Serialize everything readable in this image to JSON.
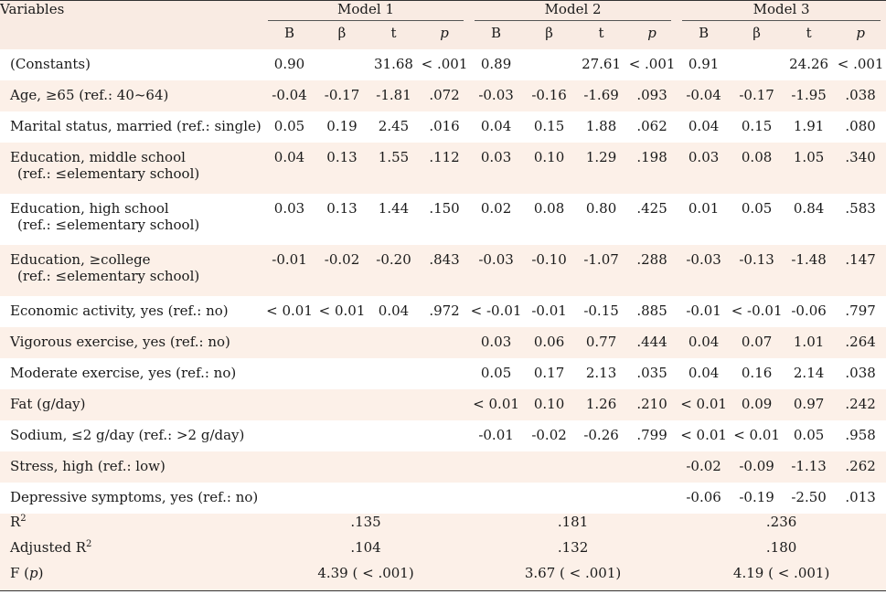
{
  "header": {
    "variables": "Variables",
    "models": [
      "Model 1",
      "Model 2",
      "Model 3"
    ],
    "subcols": [
      "B",
      "β",
      "t",
      "p"
    ]
  },
  "rows": [
    {
      "label1": "(Constants)",
      "label2": "",
      "shade": false,
      "cells": [
        "0.90",
        "",
        "31.68",
        "< .001",
        "0.89",
        "",
        "27.61",
        "< .001",
        "0.91",
        "",
        "24.26",
        "< .001"
      ]
    },
    {
      "label1": "Age, ≥65 (ref.: 40~64)",
      "label2": "",
      "shade": true,
      "cells": [
        "-0.04",
        "-0.17",
        "-1.81",
        ".072",
        "-0.03",
        "-0.16",
        "-1.69",
        ".093",
        "-0.04",
        "-0.17",
        "-1.95",
        ".038"
      ]
    },
    {
      "label1": "Marital status, married (ref.: single)",
      "label2": "",
      "shade": false,
      "cells": [
        "0.05",
        "0.19",
        "2.45",
        ".016",
        "0.04",
        "0.15",
        "1.88",
        ".062",
        "0.04",
        "0.15",
        "1.91",
        ".080"
      ]
    },
    {
      "label1": "Education, middle school",
      "label2": "(ref.: ≤elementary school)",
      "shade": true,
      "cells": [
        "0.04",
        "0.13",
        "1.55",
        ".112",
        "0.03",
        "0.10",
        "1.29",
        ".198",
        "0.03",
        "0.08",
        "1.05",
        ".340"
      ]
    },
    {
      "label1": "Education, high school",
      "label2": "(ref.: ≤elementary school)",
      "shade": false,
      "cells": [
        "0.03",
        "0.13",
        "1.44",
        ".150",
        "0.02",
        "0.08",
        "0.80",
        ".425",
        "0.01",
        "0.05",
        "0.84",
        ".583"
      ]
    },
    {
      "label1": "Education, ≥college",
      "label2": "(ref.: ≤elementary school)",
      "shade": true,
      "cells": [
        "-0.01",
        "-0.02",
        "-0.20",
        ".843",
        "-0.03",
        "-0.10",
        "-1.07",
        ".288",
        "-0.03",
        "-0.13",
        "-1.48",
        ".147"
      ]
    },
    {
      "label1": "Economic activity, yes (ref.: no)",
      "label2": "",
      "shade": false,
      "cells": [
        "< 0.01",
        "< 0.01",
        "0.04",
        ".972",
        "< -0.01",
        "-0.01",
        "-0.15",
        ".885",
        "-0.01",
        "< -0.01",
        "-0.06",
        ".797"
      ]
    },
    {
      "label1": "Vigorous exercise, yes (ref.: no)",
      "label2": "",
      "shade": true,
      "cells": [
        "",
        "",
        "",
        "",
        "0.03",
        "0.06",
        "0.77",
        ".444",
        "0.04",
        "0.07",
        "1.01",
        ".264"
      ]
    },
    {
      "label1": "Moderate exercise, yes (ref.: no)",
      "label2": "",
      "shade": false,
      "cells": [
        "",
        "",
        "",
        "",
        "0.05",
        "0.17",
        "2.13",
        ".035",
        "0.04",
        "0.16",
        "2.14",
        ".038"
      ]
    },
    {
      "label1": "Fat (g/day)",
      "label2": "",
      "shade": true,
      "cells": [
        "",
        "",
        "",
        "",
        "< 0.01",
        "0.10",
        "1.26",
        ".210",
        "< 0.01",
        "0.09",
        "0.97",
        ".242"
      ]
    },
    {
      "label1": "Sodium, ≤2 g/day (ref.: >2 g/day)",
      "label2": "",
      "shade": false,
      "cells": [
        "",
        "",
        "",
        "",
        "-0.01",
        "-0.02",
        "-0.26",
        ".799",
        "< 0.01",
        "< 0.01",
        "0.05",
        ".958"
      ]
    },
    {
      "label1": "Stress, high (ref.: low)",
      "label2": "",
      "shade": true,
      "cells": [
        "",
        "",
        "",
        "",
        "",
        "",
        "",
        "",
        "-0.02",
        "-0.09",
        "-1.13",
        ".262"
      ]
    },
    {
      "label1": "Depressive symptoms, yes (ref.: no)",
      "label2": "",
      "shade": false,
      "cells": [
        "",
        "",
        "",
        "",
        "",
        "",
        "",
        "",
        "-0.06",
        "-0.19",
        "-2.50",
        ".013"
      ]
    }
  ],
  "fit": {
    "r2_label": "R",
    "r2_sup": "2",
    "r2": [
      ".135",
      ".181",
      ".236"
    ],
    "adj_label": "Adjusted R",
    "adj_sup": "2",
    "adj": [
      ".104",
      ".132",
      ".180"
    ],
    "f_label": "F (",
    "f_p": "p",
    "f_close": ")",
    "f": [
      "4.39 ( < .001)",
      "3.67 ( < .001)",
      "4.19 ( < .001)"
    ]
  }
}
